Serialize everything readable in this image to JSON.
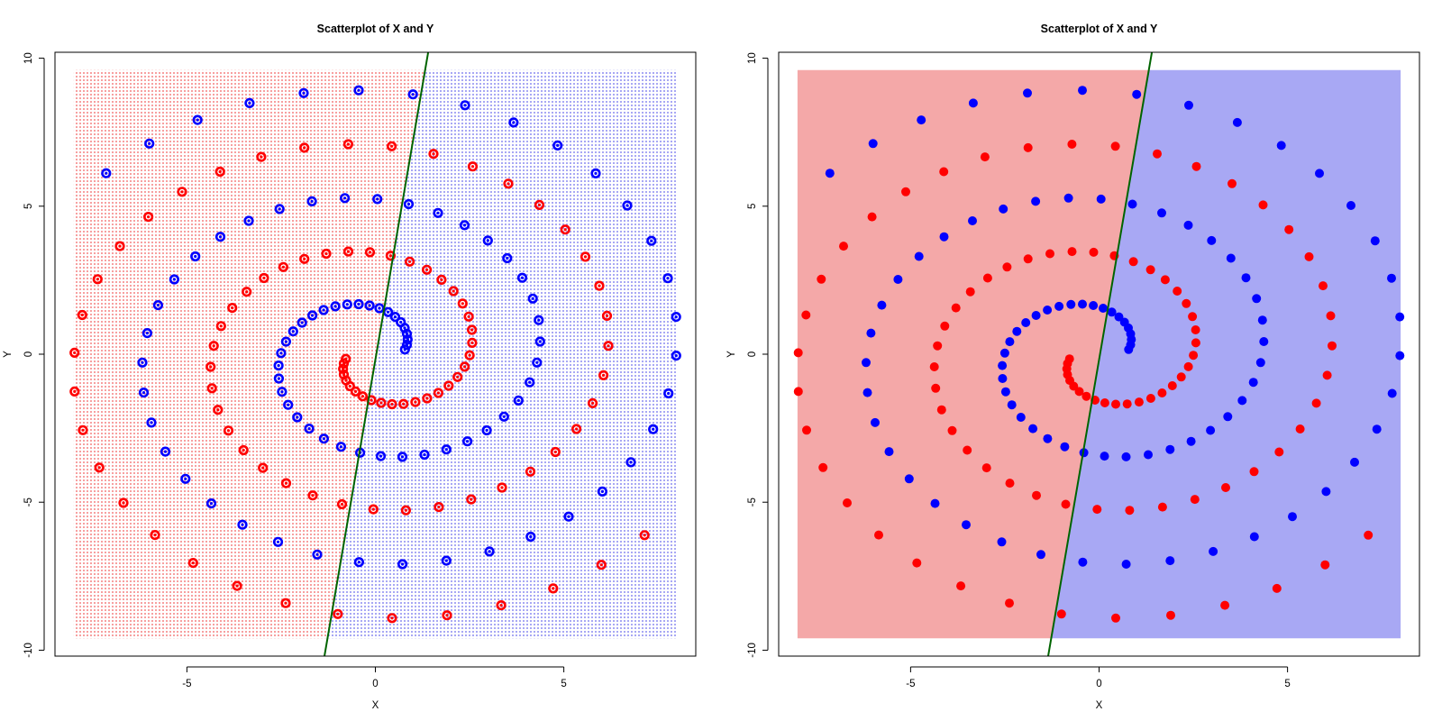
{
  "colors": {
    "class_a": "#ff0000",
    "class_b": "#0000ff",
    "region_a": "#f4a8a8",
    "region_b": "#a8a8f4",
    "boundary": "#006400"
  },
  "chart_data": [
    {
      "type": "scatter",
      "title": "Scatterplot of X and Y",
      "xlabel": "X",
      "ylabel": "Y",
      "xlim": [
        -8.5,
        8.5
      ],
      "ylim": [
        -10.2,
        10.2
      ],
      "xticks": [
        -5,
        0,
        5
      ],
      "yticks": [
        -10,
        -5,
        0,
        5,
        10
      ],
      "background": "grid",
      "region": {
        "x": [
          -8,
          8
        ],
        "y": [
          -9.6,
          9.6
        ]
      },
      "boundary_line": {
        "x": [
          -1.35,
          1.4
        ],
        "y": [
          -10.2,
          10.2
        ]
      },
      "grid": false,
      "legend": "none",
      "series": [
        {
          "color": "class_a",
          "spiral": {
            "theta_start": 0.2,
            "theta_end": 15.0,
            "r_start": 0.8,
            "r_end": 9.4,
            "phase": 3.14159,
            "n": 92
          }
        },
        {
          "color": "class_b",
          "spiral": {
            "theta_start": 0.2,
            "theta_end": 15.0,
            "r_start": 0.8,
            "r_end": 9.4,
            "phase": 0.0,
            "n": 92
          }
        }
      ]
    },
    {
      "type": "scatter",
      "title": "Scatterplot of X and Y",
      "xlabel": "X",
      "ylabel": "Y",
      "xlim": [
        -8.5,
        8.5
      ],
      "ylim": [
        -10.2,
        10.2
      ],
      "xticks": [
        -5,
        0,
        5
      ],
      "yticks": [
        -10,
        -5,
        0,
        5,
        10
      ],
      "background": "solid",
      "region": {
        "x": [
          -8,
          8
        ],
        "y": [
          -9.6,
          9.6
        ]
      },
      "boundary_line": {
        "x": [
          -1.35,
          1.4
        ],
        "y": [
          -10.2,
          10.2
        ]
      },
      "grid": false,
      "legend": "none",
      "series": [
        {
          "color": "class_a",
          "spiral": {
            "theta_start": 0.2,
            "theta_end": 15.0,
            "r_start": 0.8,
            "r_end": 9.4,
            "phase": 3.14159,
            "n": 92
          }
        },
        {
          "color": "class_b",
          "spiral": {
            "theta_start": 0.2,
            "theta_end": 15.0,
            "r_start": 0.8,
            "r_end": 9.4,
            "phase": 0.0,
            "n": 92
          }
        }
      ]
    }
  ]
}
